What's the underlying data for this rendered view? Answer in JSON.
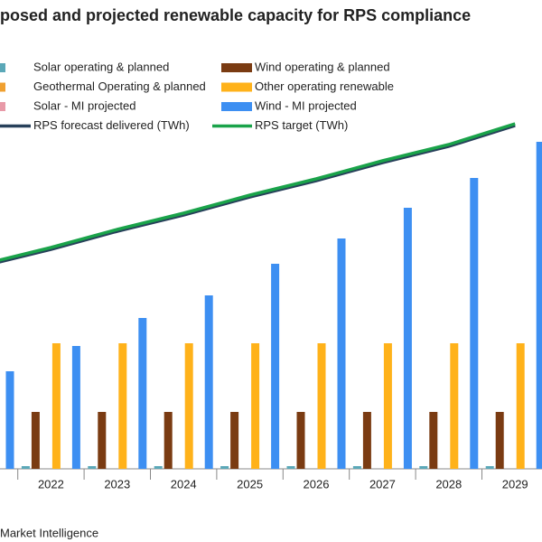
{
  "chart_data": {
    "type": "bar",
    "title": "posed and projected renewable capacity for RPS compliance",
    "source": "Market Intelligence",
    "categories": [
      null,
      "2022",
      "2023",
      "2024",
      "2025",
      "2026",
      "2027",
      "2028",
      "2029"
    ],
    "ylim": [
      0,
      400
    ],
    "y2lim": [
      0,
      400
    ],
    "legend": "top",
    "series": [
      {
        "name": "Solar operating & planned",
        "color": "#5ba8b8",
        "values": [
          3,
          3,
          3,
          3,
          3,
          3,
          3,
          3,
          3
        ]
      },
      {
        "name": "Wind operating & planned",
        "color": "#7a3b12",
        "values": [
          63,
          63,
          63,
          63,
          63,
          63,
          63,
          63,
          63
        ]
      },
      {
        "name": "Geothermal Operating & planned",
        "color": "#f0a030",
        "values": [
          0,
          0,
          0,
          0,
          0,
          0,
          0,
          0,
          0
        ]
      },
      {
        "name": "Other operating renewable",
        "color": "#ffb21a",
        "values": [
          139,
          139,
          139,
          139,
          139,
          139,
          139,
          139,
          139
        ]
      },
      {
        "name": "Solar - MI projected",
        "color": "#e89aa8",
        "values": [
          0,
          0,
          0,
          0,
          0,
          0,
          0,
          0,
          0
        ]
      },
      {
        "name": "Wind - MI projected",
        "color": "#3d8ff2",
        "values": [
          108,
          136,
          167,
          192,
          227,
          255,
          289,
          322,
          362
        ]
      },
      {
        "name": "RPS forecast delivered (TWh)",
        "color": "#27405a",
        "type": "line",
        "axis": "y2",
        "values": [
          225,
          243,
          263,
          281,
          301,
          319,
          339,
          357,
          380
        ]
      },
      {
        "name": "RPS target (TWh)",
        "color": "#1aa34a",
        "type": "line",
        "axis": "y2",
        "values": [
          227,
          245,
          265,
          283,
          303,
          321,
          341,
          359,
          382
        ]
      }
    ]
  }
}
